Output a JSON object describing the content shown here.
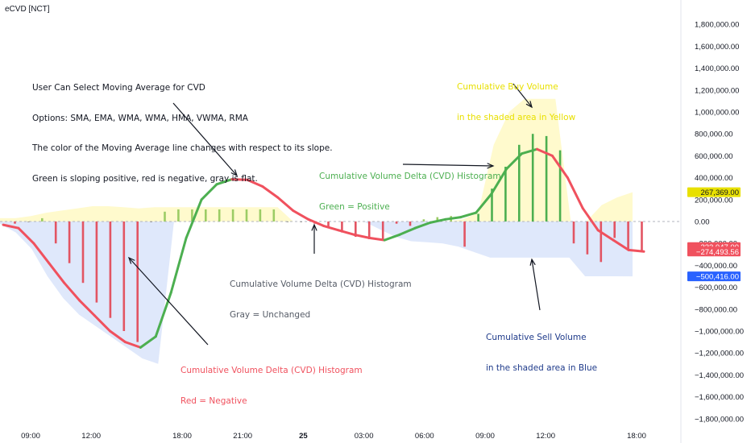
{
  "indicator_title": "eCVD [NCT]",
  "colors": {
    "positive": "#4caf50",
    "negative": "#f0515e",
    "gray": "#9e9e9e",
    "buy_shade": "#fff9c4",
    "sell_shade": "#dce6fb",
    "buy_label": "#e8e000",
    "sell_label": "#1e3a8a",
    "hist_pos_light": "#9ccc65",
    "hist_neg": "#e25563"
  },
  "annotations": {
    "ma_note": {
      "line1": "User Can Select Moving Average for CVD",
      "line2": "Options: SMA, EMA, WMA, WMA, HMA, VWMA, RMA",
      "line3": "The color of the Moving Average line changes with respect to its slope.",
      "line4": "Green is sloping positive, red is negative, gray is flat."
    },
    "buy_volume": {
      "line1": "Cumulative Buy Volume",
      "line2": "in the shaded area in Yellow"
    },
    "positive_hist": {
      "line1": "Cumulative Volume Delta (CVD) Histogram",
      "line2": "Green = Positive"
    },
    "gray_hist": {
      "line1": "Cumulative Volume Delta (CVD) Histogram",
      "line2": "Gray = Unchanged"
    },
    "negative_hist": {
      "line1": "Cumulative Volume Delta (CVD) Histogram",
      "line2": "Red = Negative"
    },
    "sell_volume": {
      "line1": "Cumulative Sell Volume",
      "line2": "in the shaded area in Blue"
    }
  },
  "chart_data": {
    "type": "bar",
    "title": "eCVD [NCT]",
    "y_ticks": [
      1800000,
      1600000,
      1400000,
      1200000,
      1000000,
      800000,
      600000,
      400000,
      200000,
      0,
      -200000,
      -400000,
      -600000,
      -800000,
      -1000000,
      -1200000,
      -1400000,
      -1600000,
      -1800000
    ],
    "y_tick_labels": [
      "1,800,000.00",
      "1,600,000.00",
      "1,400,000.00",
      "1,200,000.00",
      "1,000,000.00",
      "800,000.00",
      "600,000.00",
      "400,000.00",
      "200,000.00",
      "0.00",
      "−200,000.00",
      "−400,000.00",
      "−600,000.00",
      "−800,000.00",
      "−1,000,000.00",
      "−1,200,000.00",
      "−1,400,000.00",
      "−1,600,000.00",
      "−1,800,000.00"
    ],
    "ylim": [
      -1850000,
      1900000
    ],
    "x_tick_labels": [
      {
        "index": 0,
        "label": "09:00"
      },
      {
        "index": 4,
        "label": "12:00"
      },
      {
        "index": 10,
        "label": "18:00"
      },
      {
        "index": 14,
        "label": "21:00"
      },
      {
        "index": 18,
        "label": "25"
      },
      {
        "index": 22,
        "label": "03:00"
      },
      {
        "index": 26,
        "label": "06:00"
      },
      {
        "index": 30,
        "label": "09:00"
      },
      {
        "index": 34,
        "label": "12:00"
      },
      {
        "index": 40,
        "label": "18:00"
      }
    ],
    "histogram": [
      -20000,
      0,
      30000,
      -200000,
      -380000,
      -560000,
      -740000,
      -880000,
      -1000000,
      -1100000,
      0,
      90000,
      110000,
      110000,
      110000,
      110000,
      110000,
      110000,
      110000,
      110000,
      0,
      0,
      -20000,
      -60000,
      -100000,
      -140000,
      -160000,
      -160000,
      -20000,
      -40000,
      20000,
      40000,
      50000,
      -230000,
      70000,
      300000,
      500000,
      700000,
      800000,
      780000,
      650000,
      -200000,
      -300000,
      -370000,
      -150000,
      -250000,
      -274494
    ],
    "cvd_ma": [
      -30000,
      -60000,
      -200000,
      -380000,
      -560000,
      -720000,
      -860000,
      -1000000,
      -1100000,
      -1150000,
      -1050000,
      -650000,
      -150000,
      200000,
      340000,
      385000,
      380000,
      320000,
      220000,
      100000,
      20000,
      -40000,
      -80000,
      -120000,
      -150000,
      -170000,
      -120000,
      -60000,
      -10000,
      20000,
      40000,
      80000,
      250000,
      480000,
      620000,
      660000,
      600000,
      400000,
      120000,
      -80000,
      -170000,
      -260000,
      -274494
    ],
    "buy_volume": [
      30000,
      30000,
      50000,
      80000,
      100000,
      120000,
      140000,
      140000,
      130000,
      120000,
      130000,
      130000,
      130000,
      130000,
      130000,
      130000,
      130000,
      130000,
      130000,
      0,
      0,
      0,
      0,
      0,
      0,
      0,
      0,
      0,
      0,
      0,
      20000,
      80000,
      700000,
      1000000,
      1120000,
      1120000,
      1120000,
      0,
      0,
      150000,
      220000,
      267369
    ],
    "sell_volume": [
      -20000,
      -100000,
      -250000,
      -500000,
      -700000,
      -850000,
      -950000,
      -1050000,
      -1150000,
      -1250000,
      -1300000,
      0,
      0,
      0,
      0,
      0,
      0,
      0,
      0,
      0,
      0,
      0,
      0,
      0,
      -70000,
      -140000,
      -180000,
      -190000,
      -200000,
      -230000,
      -280000,
      -330000,
      -330000,
      -330000,
      -330000,
      -330000,
      -330000,
      -500000,
      -500000,
      -500000,
      -500416
    ],
    "price_badges": [
      {
        "value": "267,369.00",
        "bg": "#e8e000",
        "fg": "#131722",
        "level": 267369
      },
      {
        "value": "−233,047.00",
        "bg": "#f0515e",
        "fg": "#ffffff",
        "level": -233047
      },
      {
        "value": "−274,493.56",
        "bg": "#f0515e",
        "fg": "#ffffff",
        "level": -274494
      },
      {
        "value": "−500,416.00",
        "bg": "#2962ff",
        "fg": "#ffffff",
        "level": -500416
      }
    ]
  }
}
